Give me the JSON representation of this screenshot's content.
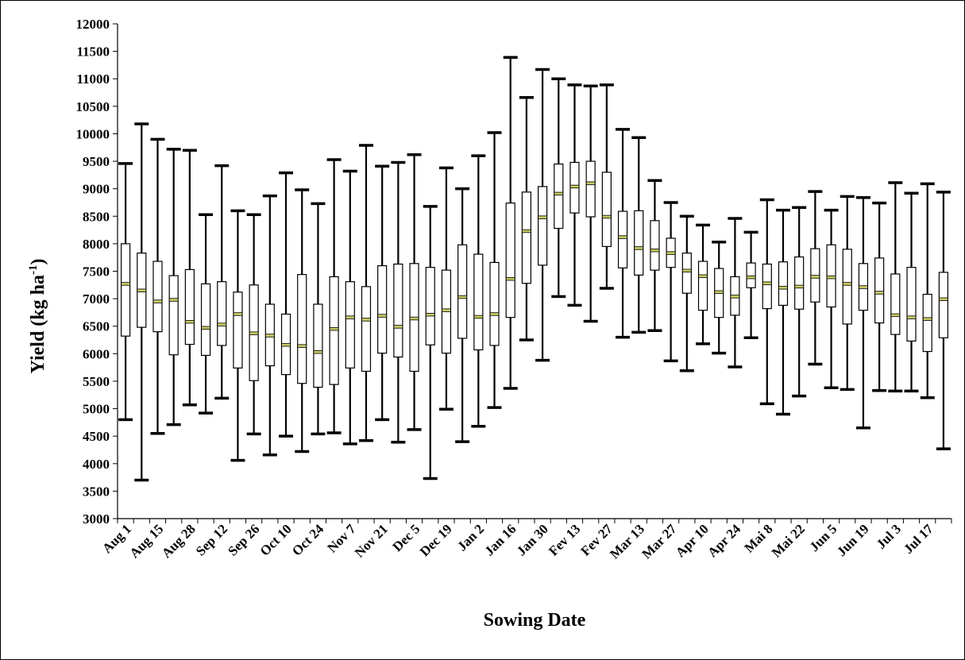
{
  "chart_data": {
    "type": "boxplot",
    "xlabel": "Sowing Date",
    "ylabel_main": "Yield (kg ha",
    "ylabel_sup": "-1",
    "ylabel_end": ")",
    "ylim": [
      3000,
      12000
    ],
    "yticks": [
      3000,
      3500,
      4000,
      4500,
      5000,
      5500,
      6000,
      6500,
      7000,
      7500,
      8000,
      8500,
      9000,
      9500,
      10000,
      10500,
      11000,
      11500,
      12000
    ],
    "x_tick_labels": [
      "Aug 1",
      "Aug 15",
      "Aug 28",
      "Sep 12",
      "Sep 26",
      "Oct 10",
      "Oct 24",
      "Nov 7",
      "Nov 21",
      "Dec 5",
      "Dec 19",
      "Jan 2",
      "Jan 16",
      "Jan 30",
      "Fev 13",
      "Fev 27",
      "Mar 13",
      "Mar 27",
      "Apr 10",
      "Apr 24",
      "Mai 8",
      "Mai 22",
      "Jun 5",
      "Jun 19",
      "Jul 3",
      "Jul 17"
    ],
    "grid": false,
    "colors": {
      "box_fill": "#ffffff",
      "box_stroke": "#000000",
      "median": "#c8c864"
    },
    "boxes": [
      {
        "min": 4800,
        "q1": 6320,
        "median": 7270,
        "q3": 8000,
        "max": 9460
      },
      {
        "min": 3700,
        "q1": 6480,
        "median": 7150,
        "q3": 7830,
        "max": 10180
      },
      {
        "min": 4550,
        "q1": 6400,
        "median": 6950,
        "q3": 7680,
        "max": 9900
      },
      {
        "min": 4710,
        "q1": 5980,
        "median": 6980,
        "q3": 7420,
        "max": 9720
      },
      {
        "min": 5070,
        "q1": 6170,
        "median": 6580,
        "q3": 7530,
        "max": 9700
      },
      {
        "min": 4920,
        "q1": 5970,
        "median": 6470,
        "q3": 7270,
        "max": 8530
      },
      {
        "min": 5190,
        "q1": 6150,
        "median": 6530,
        "q3": 7310,
        "max": 9420
      },
      {
        "min": 4060,
        "q1": 5740,
        "median": 6720,
        "q3": 7120,
        "max": 8600
      },
      {
        "min": 4540,
        "q1": 5510,
        "median": 6370,
        "q3": 7250,
        "max": 8530
      },
      {
        "min": 4160,
        "q1": 5780,
        "median": 6330,
        "q3": 6900,
        "max": 8870
      },
      {
        "min": 4500,
        "q1": 5620,
        "median": 6160,
        "q3": 6720,
        "max": 9290
      },
      {
        "min": 4220,
        "q1": 5460,
        "median": 6140,
        "q3": 7440,
        "max": 8980
      },
      {
        "min": 4540,
        "q1": 5390,
        "median": 6030,
        "q3": 6900,
        "max": 8730
      },
      {
        "min": 4560,
        "q1": 5440,
        "median": 6450,
        "q3": 7400,
        "max": 9530
      },
      {
        "min": 4360,
        "q1": 5740,
        "median": 6660,
        "q3": 7310,
        "max": 9320
      },
      {
        "min": 4420,
        "q1": 5680,
        "median": 6620,
        "q3": 7220,
        "max": 9790
      },
      {
        "min": 4800,
        "q1": 6010,
        "median": 6690,
        "q3": 7600,
        "max": 9410
      },
      {
        "min": 4390,
        "q1": 5940,
        "median": 6490,
        "q3": 7630,
        "max": 9480
      },
      {
        "min": 4620,
        "q1": 5680,
        "median": 6640,
        "q3": 7640,
        "max": 9620
      },
      {
        "min": 3730,
        "q1": 6160,
        "median": 6710,
        "q3": 7570,
        "max": 8680
      },
      {
        "min": 4990,
        "q1": 6010,
        "median": 6790,
        "q3": 7520,
        "max": 9380
      },
      {
        "min": 4400,
        "q1": 6280,
        "median": 7030,
        "q3": 7980,
        "max": 9000
      },
      {
        "min": 4680,
        "q1": 6070,
        "median": 6670,
        "q3": 7810,
        "max": 9600
      },
      {
        "min": 5020,
        "q1": 6150,
        "median": 6720,
        "q3": 7660,
        "max": 10020
      },
      {
        "min": 5370,
        "q1": 6660,
        "median": 7360,
        "q3": 8740,
        "max": 11390
      },
      {
        "min": 6250,
        "q1": 7280,
        "median": 8230,
        "q3": 8940,
        "max": 10660
      },
      {
        "min": 5880,
        "q1": 7610,
        "median": 8480,
        "q3": 9040,
        "max": 11170
      },
      {
        "min": 7040,
        "q1": 8280,
        "median": 8910,
        "q3": 9450,
        "max": 11000
      },
      {
        "min": 6880,
        "q1": 8560,
        "median": 9040,
        "q3": 9480,
        "max": 10890
      },
      {
        "min": 6590,
        "q1": 8490,
        "median": 9100,
        "q3": 9500,
        "max": 10870
      },
      {
        "min": 7190,
        "q1": 7950,
        "median": 8490,
        "q3": 9300,
        "max": 10890
      },
      {
        "min": 6300,
        "q1": 7560,
        "median": 8120,
        "q3": 8590,
        "max": 10080
      },
      {
        "min": 6390,
        "q1": 7430,
        "median": 7920,
        "q3": 8600,
        "max": 9930
      },
      {
        "min": 6420,
        "q1": 7520,
        "median": 7880,
        "q3": 8420,
        "max": 9150
      },
      {
        "min": 5870,
        "q1": 7570,
        "median": 7830,
        "q3": 8100,
        "max": 8750
      },
      {
        "min": 5690,
        "q1": 7100,
        "median": 7510,
        "q3": 7830,
        "max": 8500
      },
      {
        "min": 6180,
        "q1": 6790,
        "median": 7410,
        "q3": 7680,
        "max": 8340
      },
      {
        "min": 6010,
        "q1": 6660,
        "median": 7120,
        "q3": 7550,
        "max": 8030
      },
      {
        "min": 5760,
        "q1": 6700,
        "median": 7040,
        "q3": 7400,
        "max": 8460
      },
      {
        "min": 6290,
        "q1": 7200,
        "median": 7390,
        "q3": 7650,
        "max": 8210
      },
      {
        "min": 5090,
        "q1": 6820,
        "median": 7280,
        "q3": 7630,
        "max": 8800
      },
      {
        "min": 4900,
        "q1": 6880,
        "median": 7200,
        "q3": 7670,
        "max": 8610
      },
      {
        "min": 5230,
        "q1": 6810,
        "median": 7220,
        "q3": 7760,
        "max": 8660
      },
      {
        "min": 5810,
        "q1": 6940,
        "median": 7400,
        "q3": 7910,
        "max": 8950
      },
      {
        "min": 5380,
        "q1": 6850,
        "median": 7390,
        "q3": 7980,
        "max": 8610
      },
      {
        "min": 5350,
        "q1": 6540,
        "median": 7270,
        "q3": 7900,
        "max": 8860
      },
      {
        "min": 4650,
        "q1": 6790,
        "median": 7210,
        "q3": 7640,
        "max": 8840
      },
      {
        "min": 5330,
        "q1": 6560,
        "median": 7110,
        "q3": 7740,
        "max": 8740
      },
      {
        "min": 5320,
        "q1": 6350,
        "median": 6700,
        "q3": 7450,
        "max": 9110
      },
      {
        "min": 5320,
        "q1": 6230,
        "median": 6660,
        "q3": 7570,
        "max": 8920
      },
      {
        "min": 5200,
        "q1": 6040,
        "median": 6630,
        "q3": 7080,
        "max": 9090
      },
      {
        "min": 4270,
        "q1": 6290,
        "median": 6990,
        "q3": 7480,
        "max": 8940
      }
    ]
  }
}
